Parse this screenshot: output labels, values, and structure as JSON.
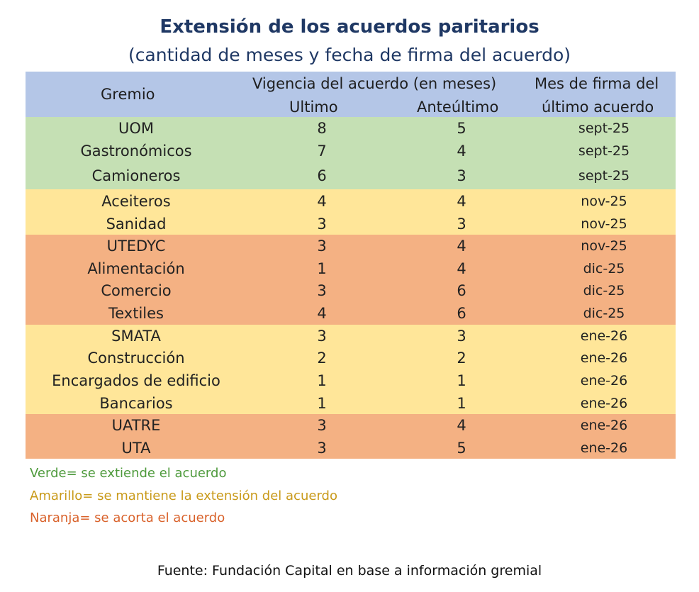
{
  "title": "Extensión de los acuerdos paritarios",
  "subtitle": "(cantidad de meses y fecha de firma del acuerdo)",
  "header": {
    "gremio": "Gremio",
    "vigencia": "Vigencia del acuerdo (en meses)",
    "ultimo": "Ultimo",
    "anteultimo": "Anteúltimo",
    "mes_firma_1": "Mes de firma del",
    "mes_firma_2": "último acuerdo"
  },
  "colors": {
    "header": "#b4c6e7",
    "green": "#c5e0b4",
    "yellow": "#ffe699",
    "orange": "#f4b183"
  },
  "chart_data": {
    "type": "table",
    "columns": [
      "Gremio",
      "Ultimo",
      "Anteúltimo",
      "Mes de firma del último acuerdo"
    ],
    "rows": [
      {
        "gremio": "UOM",
        "ultimo": 8,
        "anteultimo": 5,
        "mes": "sept-25",
        "color": "green"
      },
      {
        "gremio": "Gastronómicos",
        "ultimo": 7,
        "anteultimo": 4,
        "mes": "sept-25",
        "color": "green"
      },
      {
        "gremio": "Camioneros",
        "ultimo": 6,
        "anteultimo": 3,
        "mes": "sept-25",
        "color": "green"
      },
      {
        "gremio": "Aceiteros",
        "ultimo": 4,
        "anteultimo": 4,
        "mes": "nov-25",
        "color": "yellow"
      },
      {
        "gremio": "Sanidad",
        "ultimo": 3,
        "anteultimo": 3,
        "mes": "nov-25",
        "color": "yellow"
      },
      {
        "gremio": "UTEDYC",
        "ultimo": 3,
        "anteultimo": 4,
        "mes": "nov-25",
        "color": "orange"
      },
      {
        "gremio": "Alimentación",
        "ultimo": 1,
        "anteultimo": 4,
        "mes": "dic-25",
        "color": "orange"
      },
      {
        "gremio": "Comercio",
        "ultimo": 3,
        "anteultimo": 6,
        "mes": "dic-25",
        "color": "orange"
      },
      {
        "gremio": "Textiles",
        "ultimo": 4,
        "anteultimo": 6,
        "mes": "dic-25",
        "color": "orange"
      },
      {
        "gremio": "SMATA",
        "ultimo": 3,
        "anteultimo": 3,
        "mes": "ene-26",
        "color": "yellow"
      },
      {
        "gremio": "Construcción",
        "ultimo": 2,
        "anteultimo": 2,
        "mes": "ene-26",
        "color": "yellow"
      },
      {
        "gremio": "Encargados de edificio",
        "ultimo": 1,
        "anteultimo": 1,
        "mes": "ene-26",
        "color": "yellow"
      },
      {
        "gremio": "Bancarios",
        "ultimo": 1,
        "anteultimo": 1,
        "mes": "ene-26",
        "color": "yellow"
      },
      {
        "gremio": "UATRE",
        "ultimo": 3,
        "anteultimo": 4,
        "mes": "ene-26",
        "color": "orange"
      },
      {
        "gremio": "UTA",
        "ultimo": 3,
        "anteultimo": 5,
        "mes": "ene-26",
        "color": "orange"
      }
    ]
  },
  "legend": [
    {
      "text": "Verde= se extiende el acuerdo",
      "color": "#4e9a3c"
    },
    {
      "text": "Amarillo= se mantiene la extensión del acuerdo",
      "color": "#c99a1a"
    },
    {
      "text": "Naranja= se acorta el acuerdo",
      "color": "#d9622b"
    }
  ],
  "source": "Fuente: Fundación Capital en base a información gremial"
}
